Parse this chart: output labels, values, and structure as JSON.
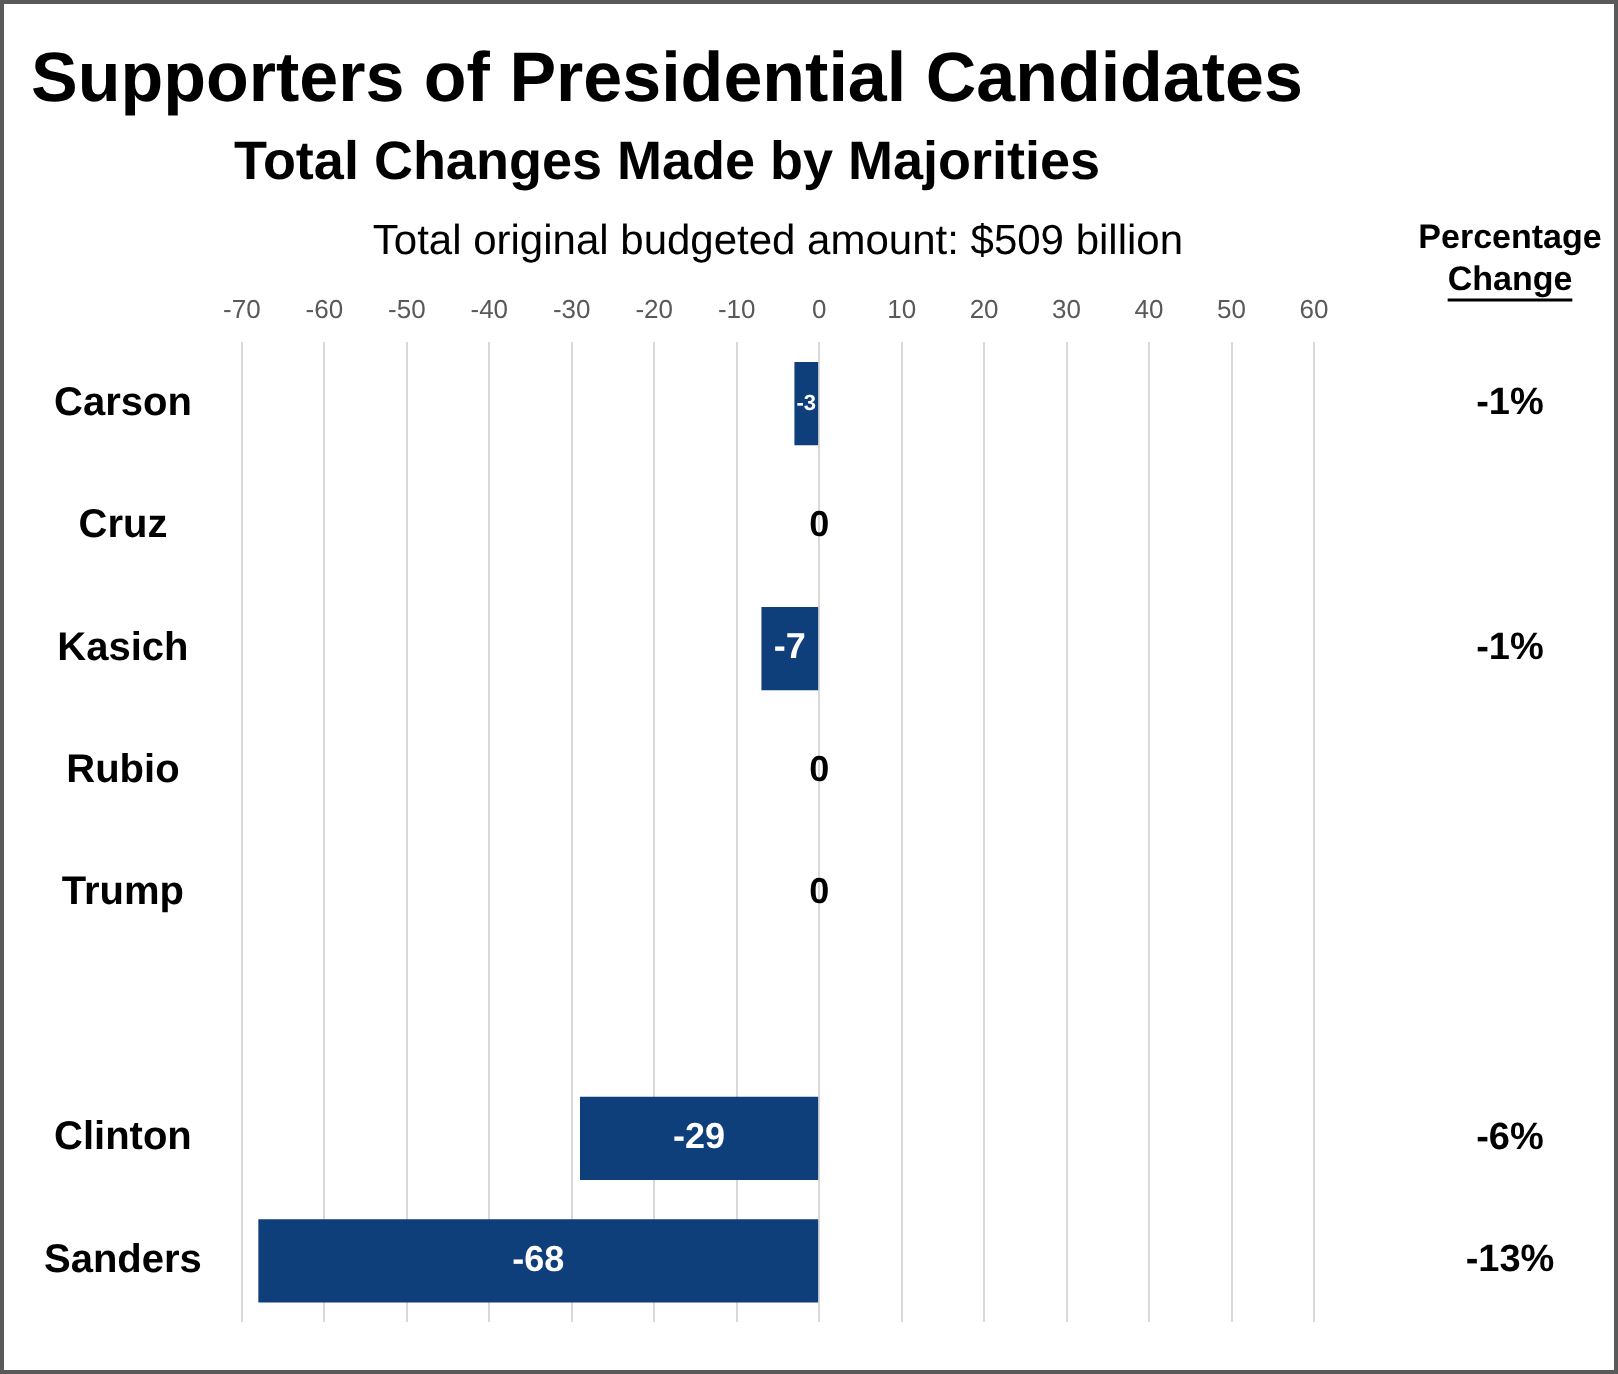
{
  "chart_data": {
    "type": "bar",
    "orientation": "horizontal",
    "title": "Supporters of Presidential Candidates",
    "subtitle": "Total Changes Made by Majorities",
    "xlabel": "Total original budgeted amount: $509 billion",
    "categories": [
      "Carson",
      "Cruz",
      "Kasich",
      "Rubio",
      "Trump",
      null,
      "Clinton",
      "Sanders"
    ],
    "values": [
      -3,
      0,
      -7,
      0,
      0,
      null,
      -29,
      -68
    ],
    "color": "#0f3f7a",
    "data_labels": true,
    "grid": "x",
    "xlim": [
      -70,
      60
    ],
    "xticks": [
      -70,
      -60,
      -50,
      -40,
      -30,
      -20,
      -10,
      0,
      10,
      20,
      30,
      40,
      50,
      60
    ],
    "annotations": [
      "Percentage Change",
      "-1%",
      "-1%",
      "-6%",
      "-13%"
    ]
  }
}
